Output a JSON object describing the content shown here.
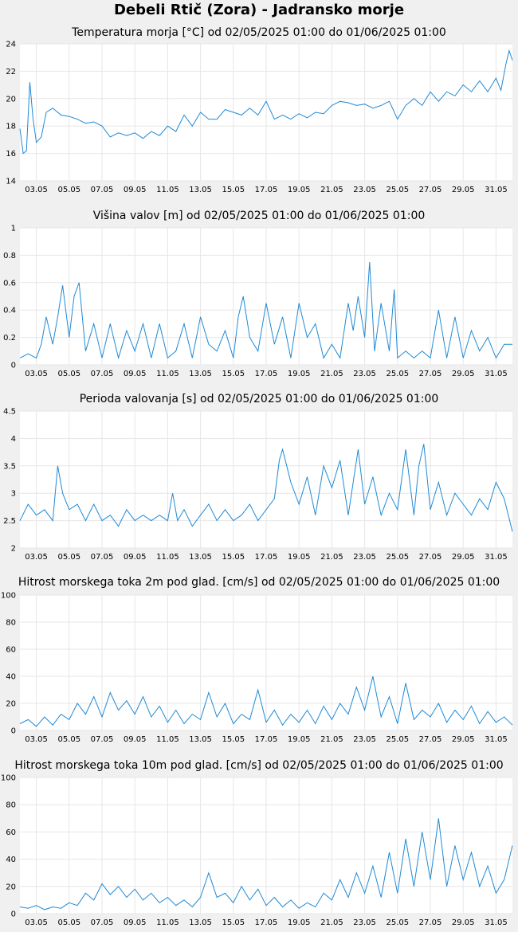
{
  "page_title": "Debeli Rtič (Zora) - Jadransko morje",
  "series_color": "#1f8ad6",
  "grid_color": "#e6e6e6",
  "plot_background": "#ffffff",
  "page_background": "#f0f0f0",
  "chart_data": [
    {
      "type": "line",
      "title": "Temperatura morja [°C] od 02/05/2025 01:00 do 01/06/2025 01:00",
      "xlabel": "",
      "ylabel": "",
      "x_tick_labels": [
        "03.05",
        "05.05",
        "07.05",
        "09.05",
        "11.05",
        "13.05",
        "15.05",
        "17.05",
        "19.05",
        "21.05",
        "23.05",
        "25.05",
        "27.05",
        "29.05",
        "31.05"
      ],
      "y_tick_labels": [
        "14",
        "16",
        "18",
        "20",
        "22",
        "24"
      ],
      "ylim": [
        14,
        24
      ],
      "xlim_days": [
        2.0,
        32.0
      ],
      "grid": true,
      "series": [
        {
          "x": [
            2.0,
            2.2,
            2.4,
            2.6,
            2.8,
            3.0,
            3.3,
            3.6,
            4.0,
            4.5,
            5.0,
            5.5,
            6.0,
            6.5,
            7.0,
            7.5,
            8.0,
            8.5,
            9.0,
            9.5,
            10.0,
            10.5,
            11.0,
            11.5,
            12.0,
            12.5,
            13.0,
            13.5,
            14.0,
            14.5,
            15.0,
            15.5,
            16.0,
            16.5,
            17.0,
            17.5,
            18.0,
            18.5,
            19.0,
            19.5,
            20.0,
            20.5,
            21.0,
            21.5,
            22.0,
            22.5,
            23.0,
            23.5,
            24.0,
            24.5,
            25.0,
            25.5,
            26.0,
            26.5,
            27.0,
            27.5,
            28.0,
            28.5,
            29.0,
            29.5,
            30.0,
            30.5,
            31.0,
            31.3,
            31.6,
            31.8,
            32.0
          ],
          "values": [
            17.8,
            16.0,
            16.2,
            21.2,
            18.5,
            16.8,
            17.2,
            19.0,
            19.3,
            18.8,
            18.7,
            18.5,
            18.2,
            18.3,
            18.0,
            17.2,
            17.5,
            17.3,
            17.5,
            17.1,
            17.6,
            17.3,
            18.0,
            17.6,
            18.8,
            18.0,
            19.0,
            18.5,
            18.5,
            19.2,
            19.0,
            18.8,
            19.3,
            18.8,
            19.8,
            18.5,
            18.8,
            18.5,
            18.9,
            18.6,
            19.0,
            18.9,
            19.5,
            19.8,
            19.7,
            19.5,
            19.6,
            19.3,
            19.5,
            19.8,
            18.5,
            19.5,
            20.0,
            19.5,
            20.5,
            19.8,
            20.5,
            20.2,
            21.0,
            20.5,
            21.3,
            20.5,
            21.5,
            20.6,
            22.5,
            23.5,
            22.8
          ]
        }
      ]
    },
    {
      "type": "line",
      "title": "Višina valov [m] od 02/05/2025 01:00 do 01/06/2025 01:00",
      "xlabel": "",
      "ylabel": "",
      "x_tick_labels": [
        "03.05",
        "05.05",
        "07.05",
        "09.05",
        "11.05",
        "13.05",
        "15.05",
        "17.05",
        "19.05",
        "21.05",
        "23.05",
        "25.05",
        "27.05",
        "29.05",
        "31.05"
      ],
      "y_tick_labels": [
        "0",
        "0.2",
        "0.4",
        "0.6",
        "0.8",
        "1"
      ],
      "ylim": [
        0,
        1
      ],
      "xlim_days": [
        2.0,
        32.0
      ],
      "grid": true,
      "series": [
        {
          "x": [
            2.0,
            2.5,
            3.0,
            3.3,
            3.6,
            4.0,
            4.3,
            4.6,
            5.0,
            5.3,
            5.6,
            6.0,
            6.5,
            7.0,
            7.5,
            8.0,
            8.5,
            9.0,
            9.5,
            10.0,
            10.5,
            11.0,
            11.5,
            12.0,
            12.5,
            13.0,
            13.5,
            14.0,
            14.5,
            15.0,
            15.3,
            15.6,
            16.0,
            16.5,
            17.0,
            17.5,
            18.0,
            18.5,
            19.0,
            19.5,
            20.0,
            20.5,
            21.0,
            21.5,
            22.0,
            22.3,
            22.6,
            23.0,
            23.3,
            23.6,
            24.0,
            24.5,
            24.8,
            25.0,
            25.5,
            26.0,
            26.5,
            27.0,
            27.5,
            28.0,
            28.5,
            29.0,
            29.5,
            30.0,
            30.5,
            31.0,
            31.5,
            32.0
          ],
          "values": [
            0.05,
            0.08,
            0.05,
            0.15,
            0.35,
            0.15,
            0.35,
            0.58,
            0.2,
            0.5,
            0.6,
            0.1,
            0.3,
            0.05,
            0.3,
            0.05,
            0.25,
            0.1,
            0.3,
            0.05,
            0.3,
            0.05,
            0.1,
            0.3,
            0.05,
            0.35,
            0.15,
            0.1,
            0.25,
            0.05,
            0.35,
            0.5,
            0.2,
            0.1,
            0.45,
            0.15,
            0.35,
            0.05,
            0.45,
            0.2,
            0.3,
            0.05,
            0.15,
            0.05,
            0.45,
            0.25,
            0.5,
            0.2,
            0.75,
            0.1,
            0.45,
            0.1,
            0.55,
            0.05,
            0.1,
            0.05,
            0.1,
            0.05,
            0.4,
            0.05,
            0.35,
            0.05,
            0.25,
            0.1,
            0.2,
            0.05,
            0.15,
            0.15
          ]
        }
      ]
    },
    {
      "type": "line",
      "title": "Perioda valovanja [s] od 02/05/2025 01:00 do 01/06/2025 01:00",
      "xlabel": "",
      "ylabel": "",
      "x_tick_labels": [
        "03.05",
        "05.05",
        "07.05",
        "09.05",
        "11.05",
        "13.05",
        "15.05",
        "17.05",
        "19.05",
        "21.05",
        "23.05",
        "25.05",
        "27.05",
        "29.05",
        "31.05"
      ],
      "y_tick_labels": [
        "2",
        "2.5",
        "3",
        "3.5",
        "4",
        "4.5"
      ],
      "ylim": [
        2,
        4.5
      ],
      "xlim_days": [
        2.0,
        32.0
      ],
      "grid": true,
      "series": [
        {
          "x": [
            2.0,
            2.5,
            3.0,
            3.5,
            4.0,
            4.3,
            4.6,
            5.0,
            5.5,
            6.0,
            6.5,
            7.0,
            7.5,
            8.0,
            8.5,
            9.0,
            9.5,
            10.0,
            10.5,
            11.0,
            11.3,
            11.6,
            12.0,
            12.5,
            13.0,
            13.5,
            14.0,
            14.5,
            15.0,
            15.5,
            16.0,
            16.5,
            17.0,
            17.5,
            17.8,
            18.0,
            18.5,
            19.0,
            19.5,
            20.0,
            20.5,
            21.0,
            21.5,
            22.0,
            22.3,
            22.6,
            23.0,
            23.5,
            24.0,
            24.5,
            25.0,
            25.5,
            26.0,
            26.3,
            26.6,
            27.0,
            27.5,
            28.0,
            28.5,
            29.0,
            29.5,
            30.0,
            30.5,
            31.0,
            31.5,
            32.0
          ],
          "values": [
            2.5,
            2.8,
            2.6,
            2.7,
            2.5,
            3.5,
            3.0,
            2.7,
            2.8,
            2.5,
            2.8,
            2.5,
            2.6,
            2.4,
            2.7,
            2.5,
            2.6,
            2.5,
            2.6,
            2.5,
            3.0,
            2.5,
            2.7,
            2.4,
            2.6,
            2.8,
            2.5,
            2.7,
            2.5,
            2.6,
            2.8,
            2.5,
            2.7,
            2.9,
            3.6,
            3.8,
            3.2,
            2.8,
            3.3,
            2.6,
            3.5,
            3.1,
            3.6,
            2.6,
            3.2,
            3.8,
            2.8,
            3.3,
            2.6,
            3.0,
            2.7,
            3.8,
            2.6,
            3.5,
            3.9,
            2.7,
            3.2,
            2.6,
            3.0,
            2.8,
            2.6,
            2.9,
            2.7,
            3.2,
            2.9,
            2.3
          ]
        }
      ]
    },
    {
      "type": "line",
      "title": "Hitrost morskega toka 2m pod glad. [cm/s] od 02/05/2025 01:00 do 01/06/2025 01:00",
      "xlabel": "",
      "ylabel": "",
      "x_tick_labels": [
        "03.05",
        "05.05",
        "07.05",
        "09.05",
        "11.05",
        "13.05",
        "15.05",
        "17.05",
        "19.05",
        "21.05",
        "23.05",
        "25.05",
        "27.05",
        "29.05",
        "31.05"
      ],
      "y_tick_labels": [
        "0",
        "20",
        "40",
        "60",
        "80",
        "100"
      ],
      "ylim": [
        0,
        100
      ],
      "xlim_days": [
        2.0,
        32.0
      ],
      "grid": true,
      "series": [
        {
          "x": [
            2.0,
            2.5,
            3.0,
            3.5,
            4.0,
            4.5,
            5.0,
            5.5,
            6.0,
            6.5,
            7.0,
            7.5,
            8.0,
            8.5,
            9.0,
            9.5,
            10.0,
            10.5,
            11.0,
            11.5,
            12.0,
            12.5,
            13.0,
            13.5,
            14.0,
            14.5,
            15.0,
            15.5,
            16.0,
            16.5,
            17.0,
            17.5,
            18.0,
            18.5,
            19.0,
            19.5,
            20.0,
            20.5,
            21.0,
            21.5,
            22.0,
            22.5,
            23.0,
            23.5,
            24.0,
            24.5,
            25.0,
            25.5,
            26.0,
            26.5,
            27.0,
            27.5,
            28.0,
            28.5,
            29.0,
            29.5,
            30.0,
            30.5,
            31.0,
            31.5,
            32.0
          ],
          "values": [
            5,
            8,
            3,
            10,
            4,
            12,
            8,
            20,
            12,
            25,
            10,
            28,
            15,
            22,
            12,
            25,
            10,
            18,
            6,
            15,
            5,
            12,
            8,
            28,
            10,
            20,
            5,
            12,
            8,
            30,
            6,
            15,
            4,
            12,
            6,
            15,
            5,
            18,
            8,
            20,
            12,
            32,
            15,
            40,
            10,
            25,
            5,
            35,
            8,
            15,
            10,
            20,
            6,
            15,
            8,
            18,
            5,
            14,
            6,
            10,
            4
          ]
        }
      ]
    },
    {
      "type": "line",
      "title": "Hitrost morskega toka 10m pod glad. [cm/s] od 02/05/2025 01:00 do 01/06/2025 01:00",
      "xlabel": "",
      "ylabel": "",
      "x_tick_labels": [
        "03.05",
        "05.05",
        "07.05",
        "09.05",
        "11.05",
        "13.05",
        "15.05",
        "17.05",
        "19.05",
        "21.05",
        "23.05",
        "25.05",
        "27.05",
        "29.05",
        "31.05"
      ],
      "y_tick_labels": [
        "0",
        "20",
        "40",
        "60",
        "80",
        "100"
      ],
      "ylim": [
        0,
        100
      ],
      "xlim_days": [
        2.0,
        32.0
      ],
      "grid": true,
      "series": [
        {
          "x": [
            2.0,
            2.5,
            3.0,
            3.5,
            4.0,
            4.5,
            5.0,
            5.5,
            6.0,
            6.5,
            7.0,
            7.5,
            8.0,
            8.5,
            9.0,
            9.5,
            10.0,
            10.5,
            11.0,
            11.5,
            12.0,
            12.5,
            13.0,
            13.5,
            14.0,
            14.5,
            15.0,
            15.5,
            16.0,
            16.5,
            17.0,
            17.5,
            18.0,
            18.5,
            19.0,
            19.5,
            20.0,
            20.5,
            21.0,
            21.5,
            22.0,
            22.5,
            23.0,
            23.5,
            24.0,
            24.5,
            25.0,
            25.5,
            26.0,
            26.5,
            27.0,
            27.5,
            28.0,
            28.5,
            29.0,
            29.5,
            30.0,
            30.5,
            31.0,
            31.5,
            32.0
          ],
          "values": [
            5,
            4,
            6,
            3,
            5,
            4,
            8,
            6,
            15,
            10,
            22,
            14,
            20,
            12,
            18,
            10,
            15,
            8,
            12,
            6,
            10,
            5,
            12,
            30,
            12,
            15,
            8,
            20,
            10,
            18,
            6,
            12,
            5,
            10,
            4,
            8,
            5,
            15,
            10,
            25,
            12,
            30,
            15,
            35,
            12,
            45,
            15,
            55,
            20,
            60,
            25,
            70,
            20,
            50,
            25,
            45,
            20,
            35,
            15,
            25,
            50
          ]
        }
      ]
    }
  ]
}
